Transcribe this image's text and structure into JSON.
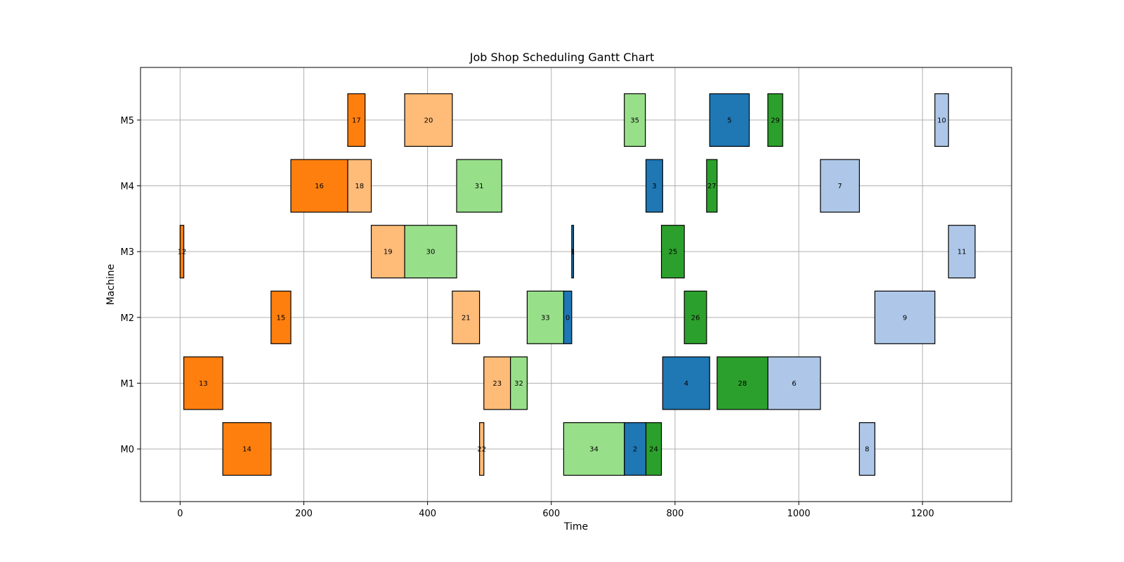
{
  "chart_data": {
    "type": "gantt",
    "title": "Job Shop Scheduling Gantt Chart",
    "xlabel": "Time",
    "ylabel": "Machine",
    "xlim": [
      -64,
      1344
    ],
    "xticks": [
      0,
      200,
      400,
      600,
      800,
      1000,
      1200
    ],
    "machines": [
      "M0",
      "M1",
      "M2",
      "M3",
      "M4",
      "M5"
    ],
    "grid": true,
    "colors": {
      "blue": "#1f77b4",
      "light_blue": "#aec7e8",
      "orange": "#ff7f0e",
      "light_orange": "#ffbb78",
      "green": "#2ca02c",
      "light_green": "#98df8a"
    },
    "tasks": [
      {
        "label": "0",
        "machine": "M2",
        "start": 620,
        "end": 633,
        "color": "blue"
      },
      {
        "label": "1",
        "machine": "M3",
        "start": 633,
        "end": 636,
        "color": "blue"
      },
      {
        "label": "2",
        "machine": "M0",
        "start": 718,
        "end": 753,
        "color": "blue"
      },
      {
        "label": "3",
        "machine": "M4",
        "start": 753,
        "end": 780,
        "color": "blue"
      },
      {
        "label": "4",
        "machine": "M1",
        "start": 780,
        "end": 856,
        "color": "blue"
      },
      {
        "label": "5",
        "machine": "M5",
        "start": 856,
        "end": 920,
        "color": "blue"
      },
      {
        "label": "6",
        "machine": "M1",
        "start": 950,
        "end": 1035,
        "color": "light_blue"
      },
      {
        "label": "7",
        "machine": "M4",
        "start": 1035,
        "end": 1098,
        "color": "light_blue"
      },
      {
        "label": "8",
        "machine": "M0",
        "start": 1098,
        "end": 1123,
        "color": "light_blue"
      },
      {
        "label": "9",
        "machine": "M2",
        "start": 1123,
        "end": 1220,
        "color": "light_blue"
      },
      {
        "label": "10",
        "machine": "M5",
        "start": 1220,
        "end": 1242,
        "color": "light_blue"
      },
      {
        "label": "11",
        "machine": "M3",
        "start": 1242,
        "end": 1285,
        "color": "light_blue"
      },
      {
        "label": "12",
        "machine": "M3",
        "start": 0,
        "end": 6,
        "color": "orange"
      },
      {
        "label": "13",
        "machine": "M1",
        "start": 6,
        "end": 69,
        "color": "orange"
      },
      {
        "label": "14",
        "machine": "M0",
        "start": 69,
        "end": 147,
        "color": "orange"
      },
      {
        "label": "15",
        "machine": "M2",
        "start": 147,
        "end": 179,
        "color": "orange"
      },
      {
        "label": "16",
        "machine": "M4",
        "start": 179,
        "end": 271,
        "color": "orange"
      },
      {
        "label": "17",
        "machine": "M5",
        "start": 271,
        "end": 299,
        "color": "orange"
      },
      {
        "label": "18",
        "machine": "M4",
        "start": 271,
        "end": 309,
        "color": "light_orange"
      },
      {
        "label": "19",
        "machine": "M3",
        "start": 309,
        "end": 363,
        "color": "light_orange"
      },
      {
        "label": "20",
        "machine": "M5",
        "start": 363,
        "end": 440,
        "color": "light_orange"
      },
      {
        "label": "21",
        "machine": "M2",
        "start": 440,
        "end": 484,
        "color": "light_orange"
      },
      {
        "label": "22",
        "machine": "M0",
        "start": 484,
        "end": 491,
        "color": "light_orange"
      },
      {
        "label": "23",
        "machine": "M1",
        "start": 491,
        "end": 534,
        "color": "light_orange"
      },
      {
        "label": "24",
        "machine": "M0",
        "start": 753,
        "end": 778,
        "color": "green"
      },
      {
        "label": "25",
        "machine": "M3",
        "start": 778,
        "end": 815,
        "color": "green"
      },
      {
        "label": "26",
        "machine": "M2",
        "start": 815,
        "end": 851,
        "color": "green"
      },
      {
        "label": "27",
        "machine": "M4",
        "start": 851,
        "end": 868,
        "color": "green"
      },
      {
        "label": "28",
        "machine": "M1",
        "start": 868,
        "end": 950,
        "color": "green"
      },
      {
        "label": "29",
        "machine": "M5",
        "start": 950,
        "end": 974,
        "color": "green"
      },
      {
        "label": "30",
        "machine": "M3",
        "start": 363,
        "end": 447,
        "color": "light_green"
      },
      {
        "label": "31",
        "machine": "M4",
        "start": 447,
        "end": 520,
        "color": "light_green"
      },
      {
        "label": "32",
        "machine": "M1",
        "start": 534,
        "end": 561,
        "color": "light_green"
      },
      {
        "label": "33",
        "machine": "M2",
        "start": 561,
        "end": 620,
        "color": "light_green"
      },
      {
        "label": "34",
        "machine": "M0",
        "start": 620,
        "end": 718,
        "color": "light_green"
      },
      {
        "label": "35",
        "machine": "M5",
        "start": 718,
        "end": 752,
        "color": "light_green"
      }
    ]
  }
}
